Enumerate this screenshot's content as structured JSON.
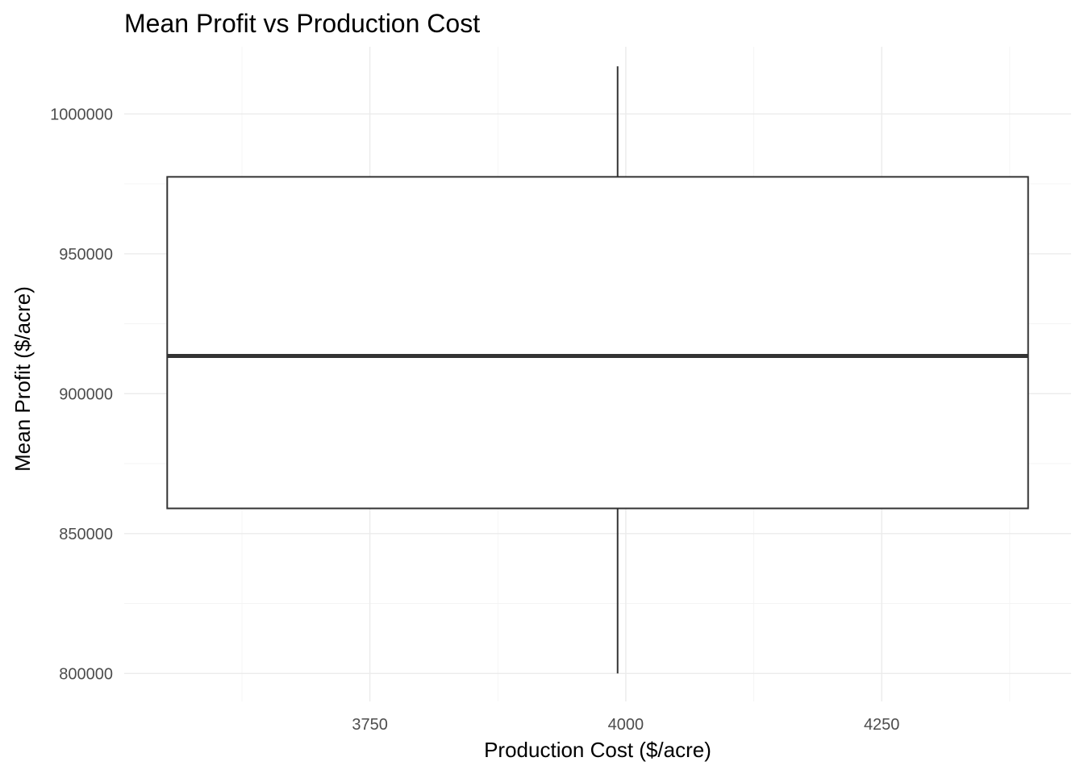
{
  "chart_data": {
    "type": "boxplot",
    "title": "Mean Profit vs Production Cost",
    "xlabel": "Production Cost ($/acre)",
    "ylabel": "Mean Profit ($/acre)",
    "xlim": [
      3510,
      4435
    ],
    "ylim": [
      790000,
      1024000
    ],
    "x_ticks": [
      3750,
      4000,
      4250
    ],
    "x_minor_ticks": [
      3625,
      3875,
      4125,
      4375
    ],
    "y_ticks": [
      800000,
      850000,
      900000,
      950000,
      1000000
    ],
    "y_minor_ticks": [
      825000,
      875000,
      925000,
      975000,
      1025000
    ],
    "grid": true,
    "legend": "none",
    "box": {
      "x_center": 3992,
      "x_left": 3552,
      "x_right": 4393,
      "whisker_min": 800000,
      "q1": 859000,
      "median": 913500,
      "q3": 977500,
      "whisker_max": 1017000
    },
    "colors": {
      "box_fill": "#ffffff",
      "box_stroke": "#333333",
      "whisker": "#333333",
      "median": "#333333",
      "grid": "#ebebeb"
    }
  }
}
